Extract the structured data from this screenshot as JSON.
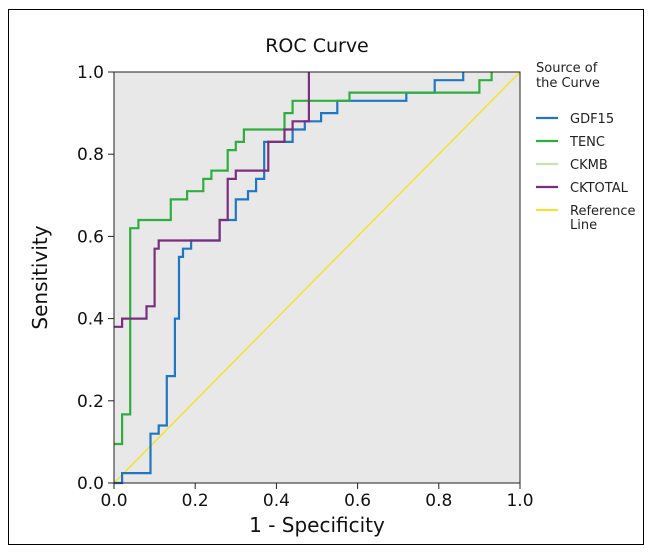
{
  "chart_data": {
    "type": "line",
    "title": "ROC Curve",
    "xlabel": "1 - Specificity",
    "ylabel": "Sensitivity",
    "xlim": [
      0,
      1
    ],
    "ylim": [
      0,
      1
    ],
    "xticks": [
      "0.0",
      "0.2",
      "0.4",
      "0.6",
      "0.8",
      "1.0"
    ],
    "yticks": [
      "0.0",
      "0.2",
      "0.4",
      "0.6",
      "0.8",
      "1.0"
    ],
    "grid": false,
    "legend": {
      "title": "Source of the Curve",
      "title_lines": [
        "Source of",
        "the Curve"
      ],
      "placement": "right"
    },
    "colors": {
      "plot_background": "#e8e8e8"
    },
    "series": [
      {
        "name": "GDF15",
        "color": "#1f77c4",
        "x": [
          0,
          0.02,
          0.02,
          0.09,
          0.09,
          0.11,
          0.11,
          0.13,
          0.13,
          0.15,
          0.15,
          0.16,
          0.16,
          0.17,
          0.17,
          0.19,
          0.19,
          0.21,
          0.21,
          0.26,
          0.26,
          0.3,
          0.3,
          0.33,
          0.33,
          0.35,
          0.35,
          0.37,
          0.37,
          0.44,
          0.44,
          0.47,
          0.47,
          0.51,
          0.51,
          0.55,
          0.55,
          0.72,
          0.72,
          0.79,
          0.79,
          0.86,
          0.86
        ],
        "y": [
          0,
          0,
          0.024,
          0.024,
          0.12,
          0.12,
          0.14,
          0.14,
          0.26,
          0.26,
          0.4,
          0.4,
          0.55,
          0.55,
          0.57,
          0.57,
          0.59,
          0.59,
          0.59,
          0.59,
          0.64,
          0.64,
          0.69,
          0.69,
          0.71,
          0.71,
          0.74,
          0.74,
          0.83,
          0.83,
          0.86,
          0.86,
          0.88,
          0.88,
          0.9,
          0.9,
          0.93,
          0.93,
          0.95,
          0.95,
          0.98,
          0.98,
          1.0
        ]
      },
      {
        "name": "TENC",
        "color": "#2fae3f",
        "x": [
          0,
          0.02,
          0.02,
          0.04,
          0.04,
          0.06,
          0.06,
          0.08,
          0.08,
          0.14,
          0.14,
          0.18,
          0.18,
          0.22,
          0.22,
          0.24,
          0.24,
          0.28,
          0.28,
          0.3,
          0.3,
          0.32,
          0.32,
          0.36,
          0.36,
          0.42,
          0.42,
          0.44,
          0.44,
          0.58,
          0.58,
          0.72,
          0.72,
          0.9,
          0.9,
          0.93,
          0.93
        ],
        "y": [
          0.095,
          0.095,
          0.167,
          0.167,
          0.62,
          0.62,
          0.64,
          0.64,
          0.64,
          0.64,
          0.69,
          0.69,
          0.71,
          0.71,
          0.74,
          0.74,
          0.76,
          0.76,
          0.81,
          0.81,
          0.83,
          0.83,
          0.86,
          0.86,
          0.86,
          0.86,
          0.9,
          0.9,
          0.93,
          0.93,
          0.95,
          0.95,
          0.95,
          0.95,
          0.98,
          0.98,
          1.0
        ]
      },
      {
        "name": "CKMB",
        "color": "#c7e3b4",
        "x": [],
        "y": []
      },
      {
        "name": "CKTOTAL",
        "color": "#7b2d7f",
        "x": [
          0,
          0.02,
          0.02,
          0.06,
          0.06,
          0.08,
          0.08,
          0.1,
          0.1,
          0.11,
          0.11,
          0.26,
          0.26,
          0.28,
          0.28,
          0.3,
          0.3,
          0.38,
          0.38,
          0.42,
          0.42,
          0.44,
          0.44,
          0.46,
          0.46,
          0.48,
          0.48
        ],
        "y": [
          0.38,
          0.38,
          0.4,
          0.4,
          0.4,
          0.4,
          0.43,
          0.43,
          0.57,
          0.57,
          0.59,
          0.59,
          0.64,
          0.64,
          0.74,
          0.74,
          0.76,
          0.76,
          0.83,
          0.83,
          0.86,
          0.86,
          0.88,
          0.88,
          0.88,
          0.88,
          1.0
        ]
      },
      {
        "name": "Reference Line",
        "name_lines": [
          "Reference",
          "Line"
        ],
        "color": "#f2e33a",
        "x": [
          0,
          1
        ],
        "y": [
          0,
          1
        ]
      }
    ]
  }
}
